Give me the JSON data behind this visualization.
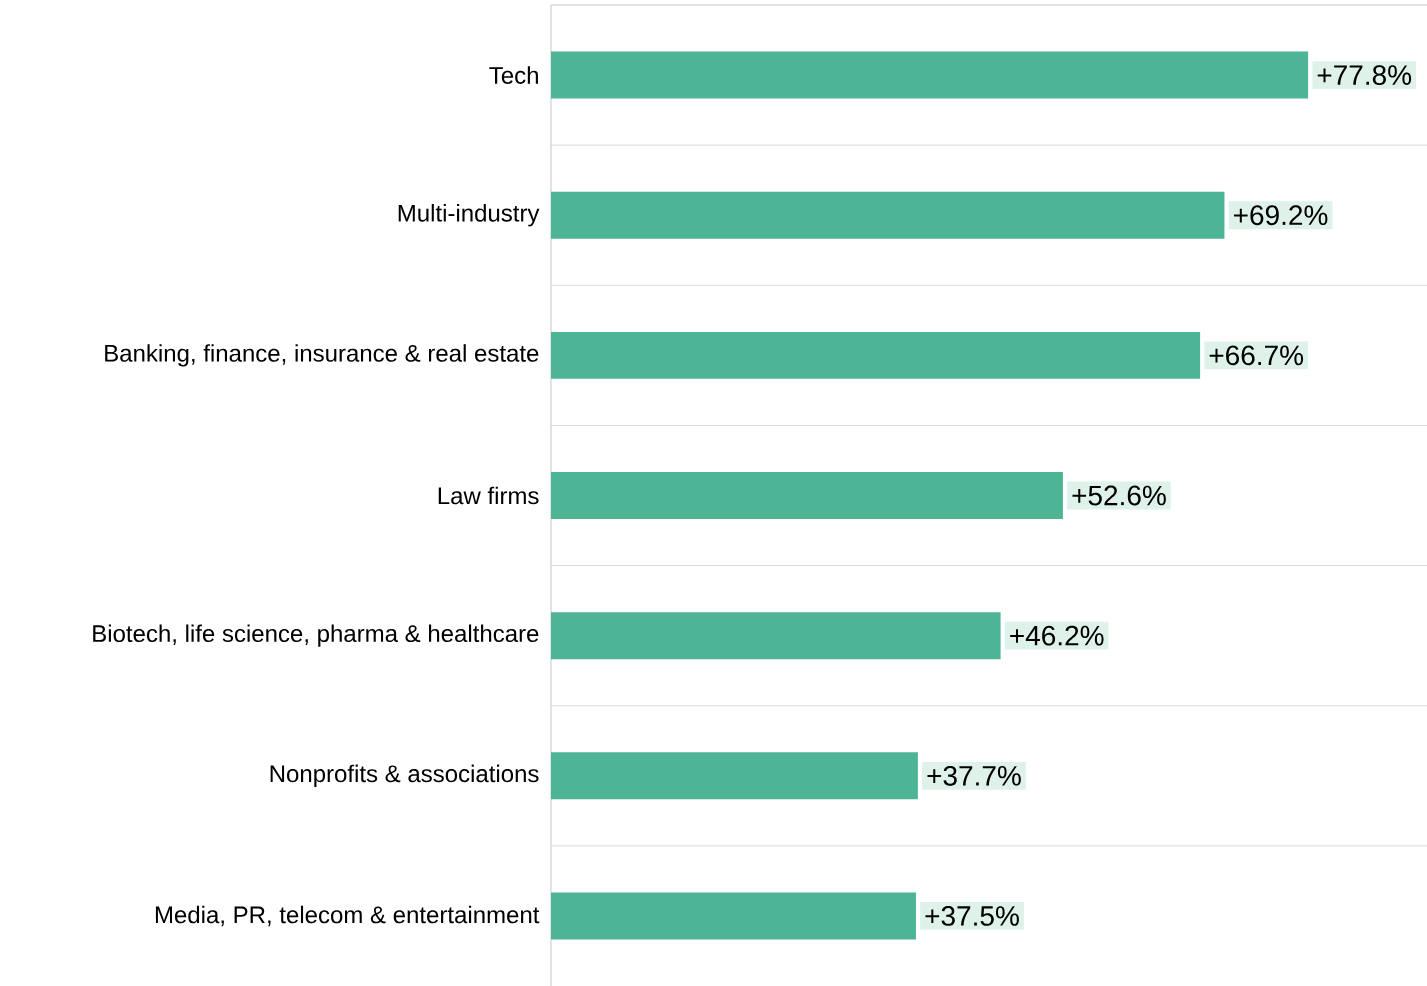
{
  "chart_data": {
    "type": "bar",
    "orientation": "horizontal",
    "categories": [
      "Tech",
      "Multi-industry",
      "Banking, finance, insurance & real estate",
      "Law firms",
      "Biotech, life science, pharma & healthcare",
      "Nonprofits & associations",
      "Media, PR, telecom & entertainment"
    ],
    "values": [
      77.8,
      69.2,
      66.7,
      52.6,
      46.2,
      37.7,
      37.5
    ],
    "value_labels": [
      "+77.8%",
      "+69.2%",
      "+66.7%",
      "+52.6%",
      "+46.2%",
      "+37.7%",
      "+37.5%"
    ],
    "color": "#4db595",
    "grid": "y",
    "tick_labels": "y"
  }
}
